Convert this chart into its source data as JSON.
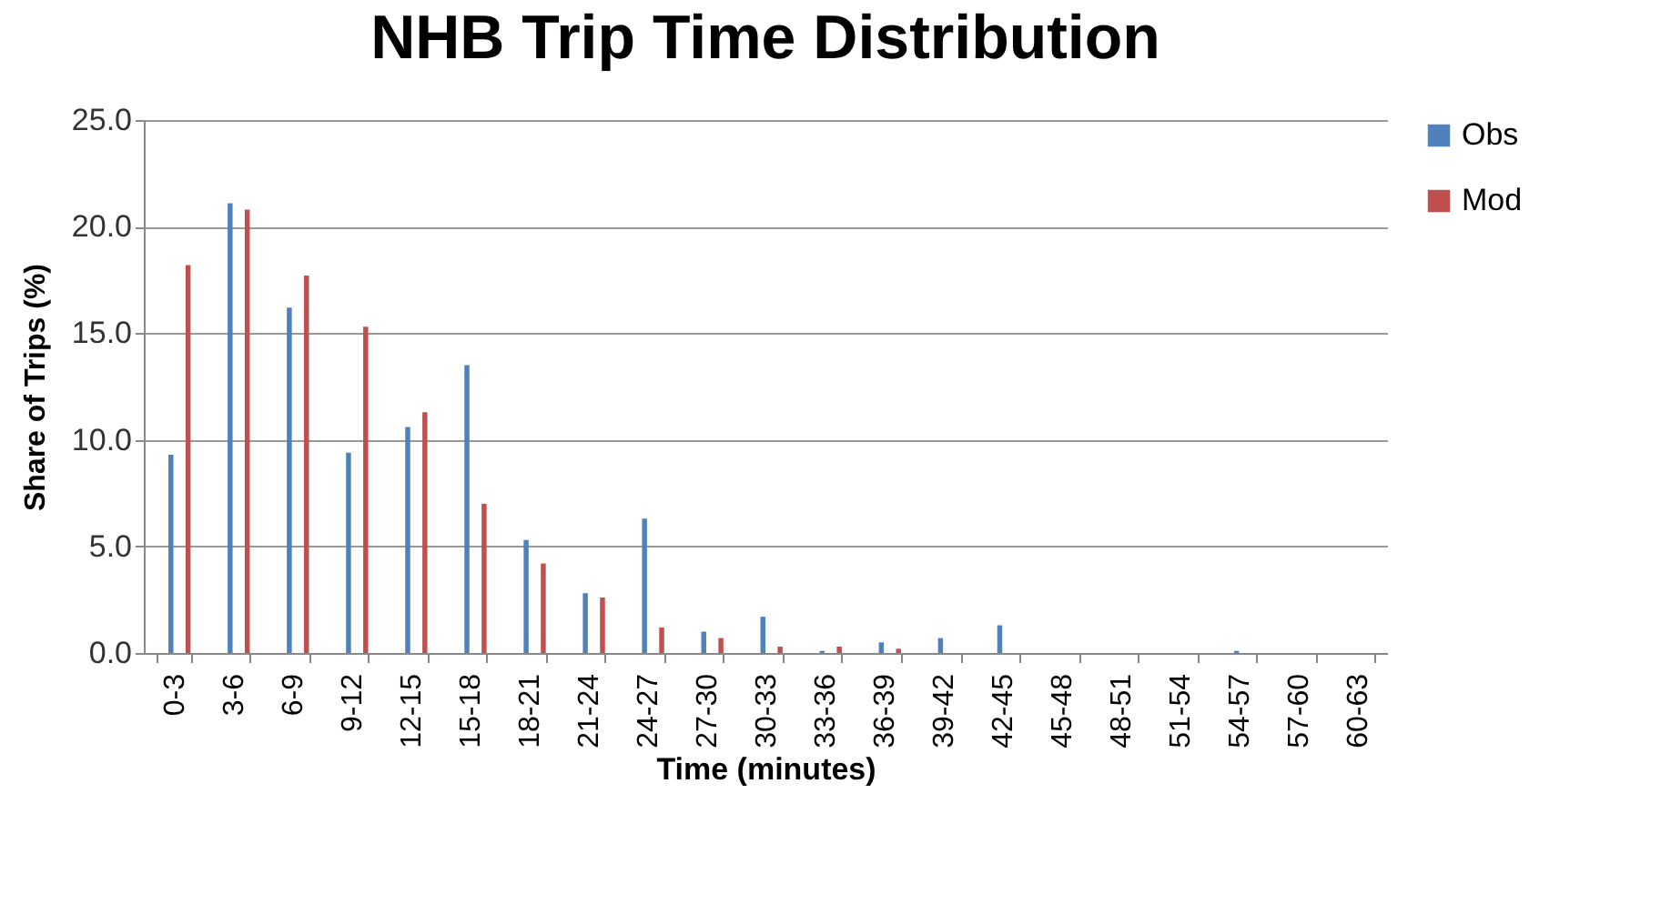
{
  "chart_data": {
    "type": "bar",
    "title": "NHB Trip Time Distribution",
    "xlabel": "Time (minutes)",
    "ylabel": "Share of Trips (%)",
    "categories": [
      "0-3",
      "3-6",
      "6-9",
      "9-12",
      "12-15",
      "15-18",
      "18-21",
      "21-24",
      "24-27",
      "27-30",
      "30-33",
      "33-36",
      "36-39",
      "39-42",
      "42-45",
      "45-48",
      "48-51",
      "51-54",
      "54-57",
      "57-60",
      "60-63"
    ],
    "series": [
      {
        "name": "Obs",
        "color": "#4f81bd",
        "values": [
          9.3,
          21.1,
          16.2,
          9.4,
          10.6,
          13.5,
          5.3,
          2.8,
          6.3,
          1.0,
          1.7,
          0.1,
          0.5,
          0.7,
          1.3,
          0,
          0,
          0,
          0.1,
          0,
          0
        ]
      },
      {
        "name": "Mod",
        "color": "#c0504d",
        "values": [
          18.2,
          20.8,
          17.7,
          15.3,
          11.3,
          7.0,
          4.2,
          2.6,
          1.2,
          0.7,
          0.3,
          0.3,
          0.2,
          0,
          0,
          0,
          0,
          0,
          0,
          0,
          0
        ]
      }
    ],
    "ylim": [
      0,
      25
    ],
    "yticks": [
      {
        "value": 0,
        "label": "0.0"
      },
      {
        "value": 5,
        "label": "5.0"
      },
      {
        "value": 10,
        "label": "10.0"
      },
      {
        "value": 15,
        "label": "15.0"
      },
      {
        "value": 20,
        "label": "20.0"
      },
      {
        "value": 25,
        "label": "25.0"
      }
    ],
    "grid": "y",
    "legend": "right"
  }
}
